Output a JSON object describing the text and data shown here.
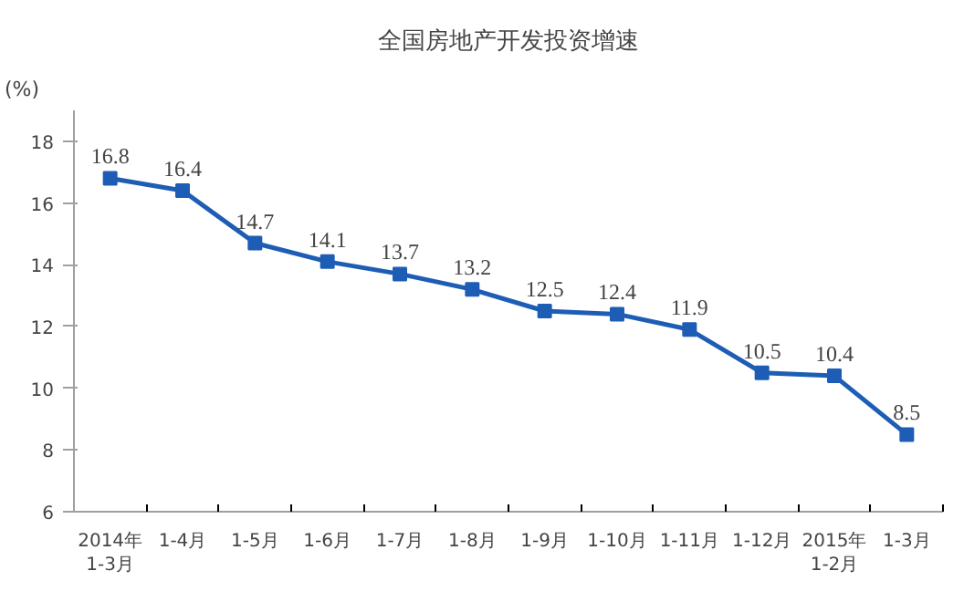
{
  "chart_data": {
    "type": "line",
    "title": "全国房地产开发投资增速",
    "ylabel": "(%)",
    "categories": [
      "2014年\n1-3月",
      "1-4月",
      "1-5月",
      "1-6月",
      "1-7月",
      "1-8月",
      "1-9月",
      "1-10月",
      "1-11月",
      "1-12月",
      "2015年\n1-2月",
      "1-3月"
    ],
    "series": [
      {
        "color": "#1e5db5",
        "values": [
          16.8,
          16.4,
          14.7,
          14.1,
          13.7,
          13.2,
          12.5,
          12.4,
          11.9,
          10.5,
          10.4,
          8.5
        ]
      }
    ],
    "ylim": [
      6,
      19
    ],
    "yticks": [
      6,
      8,
      10,
      12,
      14,
      16,
      18
    ],
    "grid": false,
    "marker": "square",
    "line_style": "solid",
    "data_labels": true
  }
}
